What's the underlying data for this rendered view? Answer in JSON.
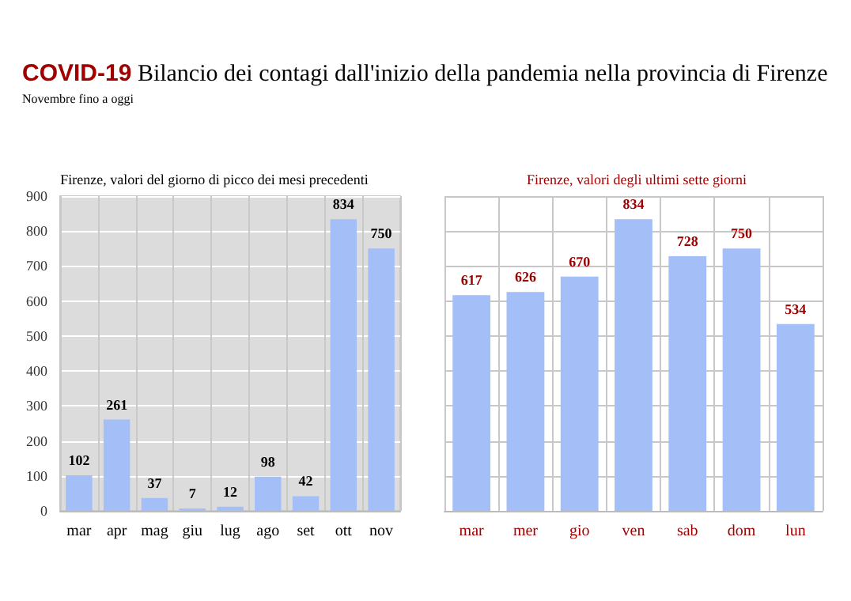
{
  "chart_data": [
    {
      "type": "other",
      "title": "COVID-19 Bilancio dei contagi dall'inizio della pandemia nella provincia di Firenze",
      "subtitle": "Novembre fino a oggi"
    },
    {
      "type": "bar",
      "title": "Firenze, valori del giorno di picco dei mesi precedenti",
      "categories": [
        "mar",
        "apr",
        "mag",
        "giu",
        "lug",
        "ago",
        "set",
        "ott",
        "nov"
      ],
      "values": [
        102,
        261,
        37,
        7,
        12,
        98,
        42,
        834,
        750
      ],
      "color": "#a4bef7",
      "ylim": [
        0,
        900
      ],
      "yticks": [
        0,
        100,
        200,
        300,
        400,
        500,
        600,
        700,
        800,
        900
      ],
      "grid": true,
      "data_labels": true
    },
    {
      "type": "bar",
      "title": "Firenze, valori degli ultimi sette giorni",
      "categories": [
        "mar",
        "mer",
        "gio",
        "ven",
        "sab",
        "dom",
        "lun"
      ],
      "values": [
        617,
        626,
        670,
        834,
        728,
        750,
        534
      ],
      "color": "#a4bef7",
      "ylim": [
        0,
        900
      ],
      "yticks": [
        0,
        100,
        200,
        300,
        400,
        500,
        600,
        700,
        800,
        900
      ],
      "grid": true,
      "data_labels": true,
      "tick_labels": "x"
    }
  ]
}
